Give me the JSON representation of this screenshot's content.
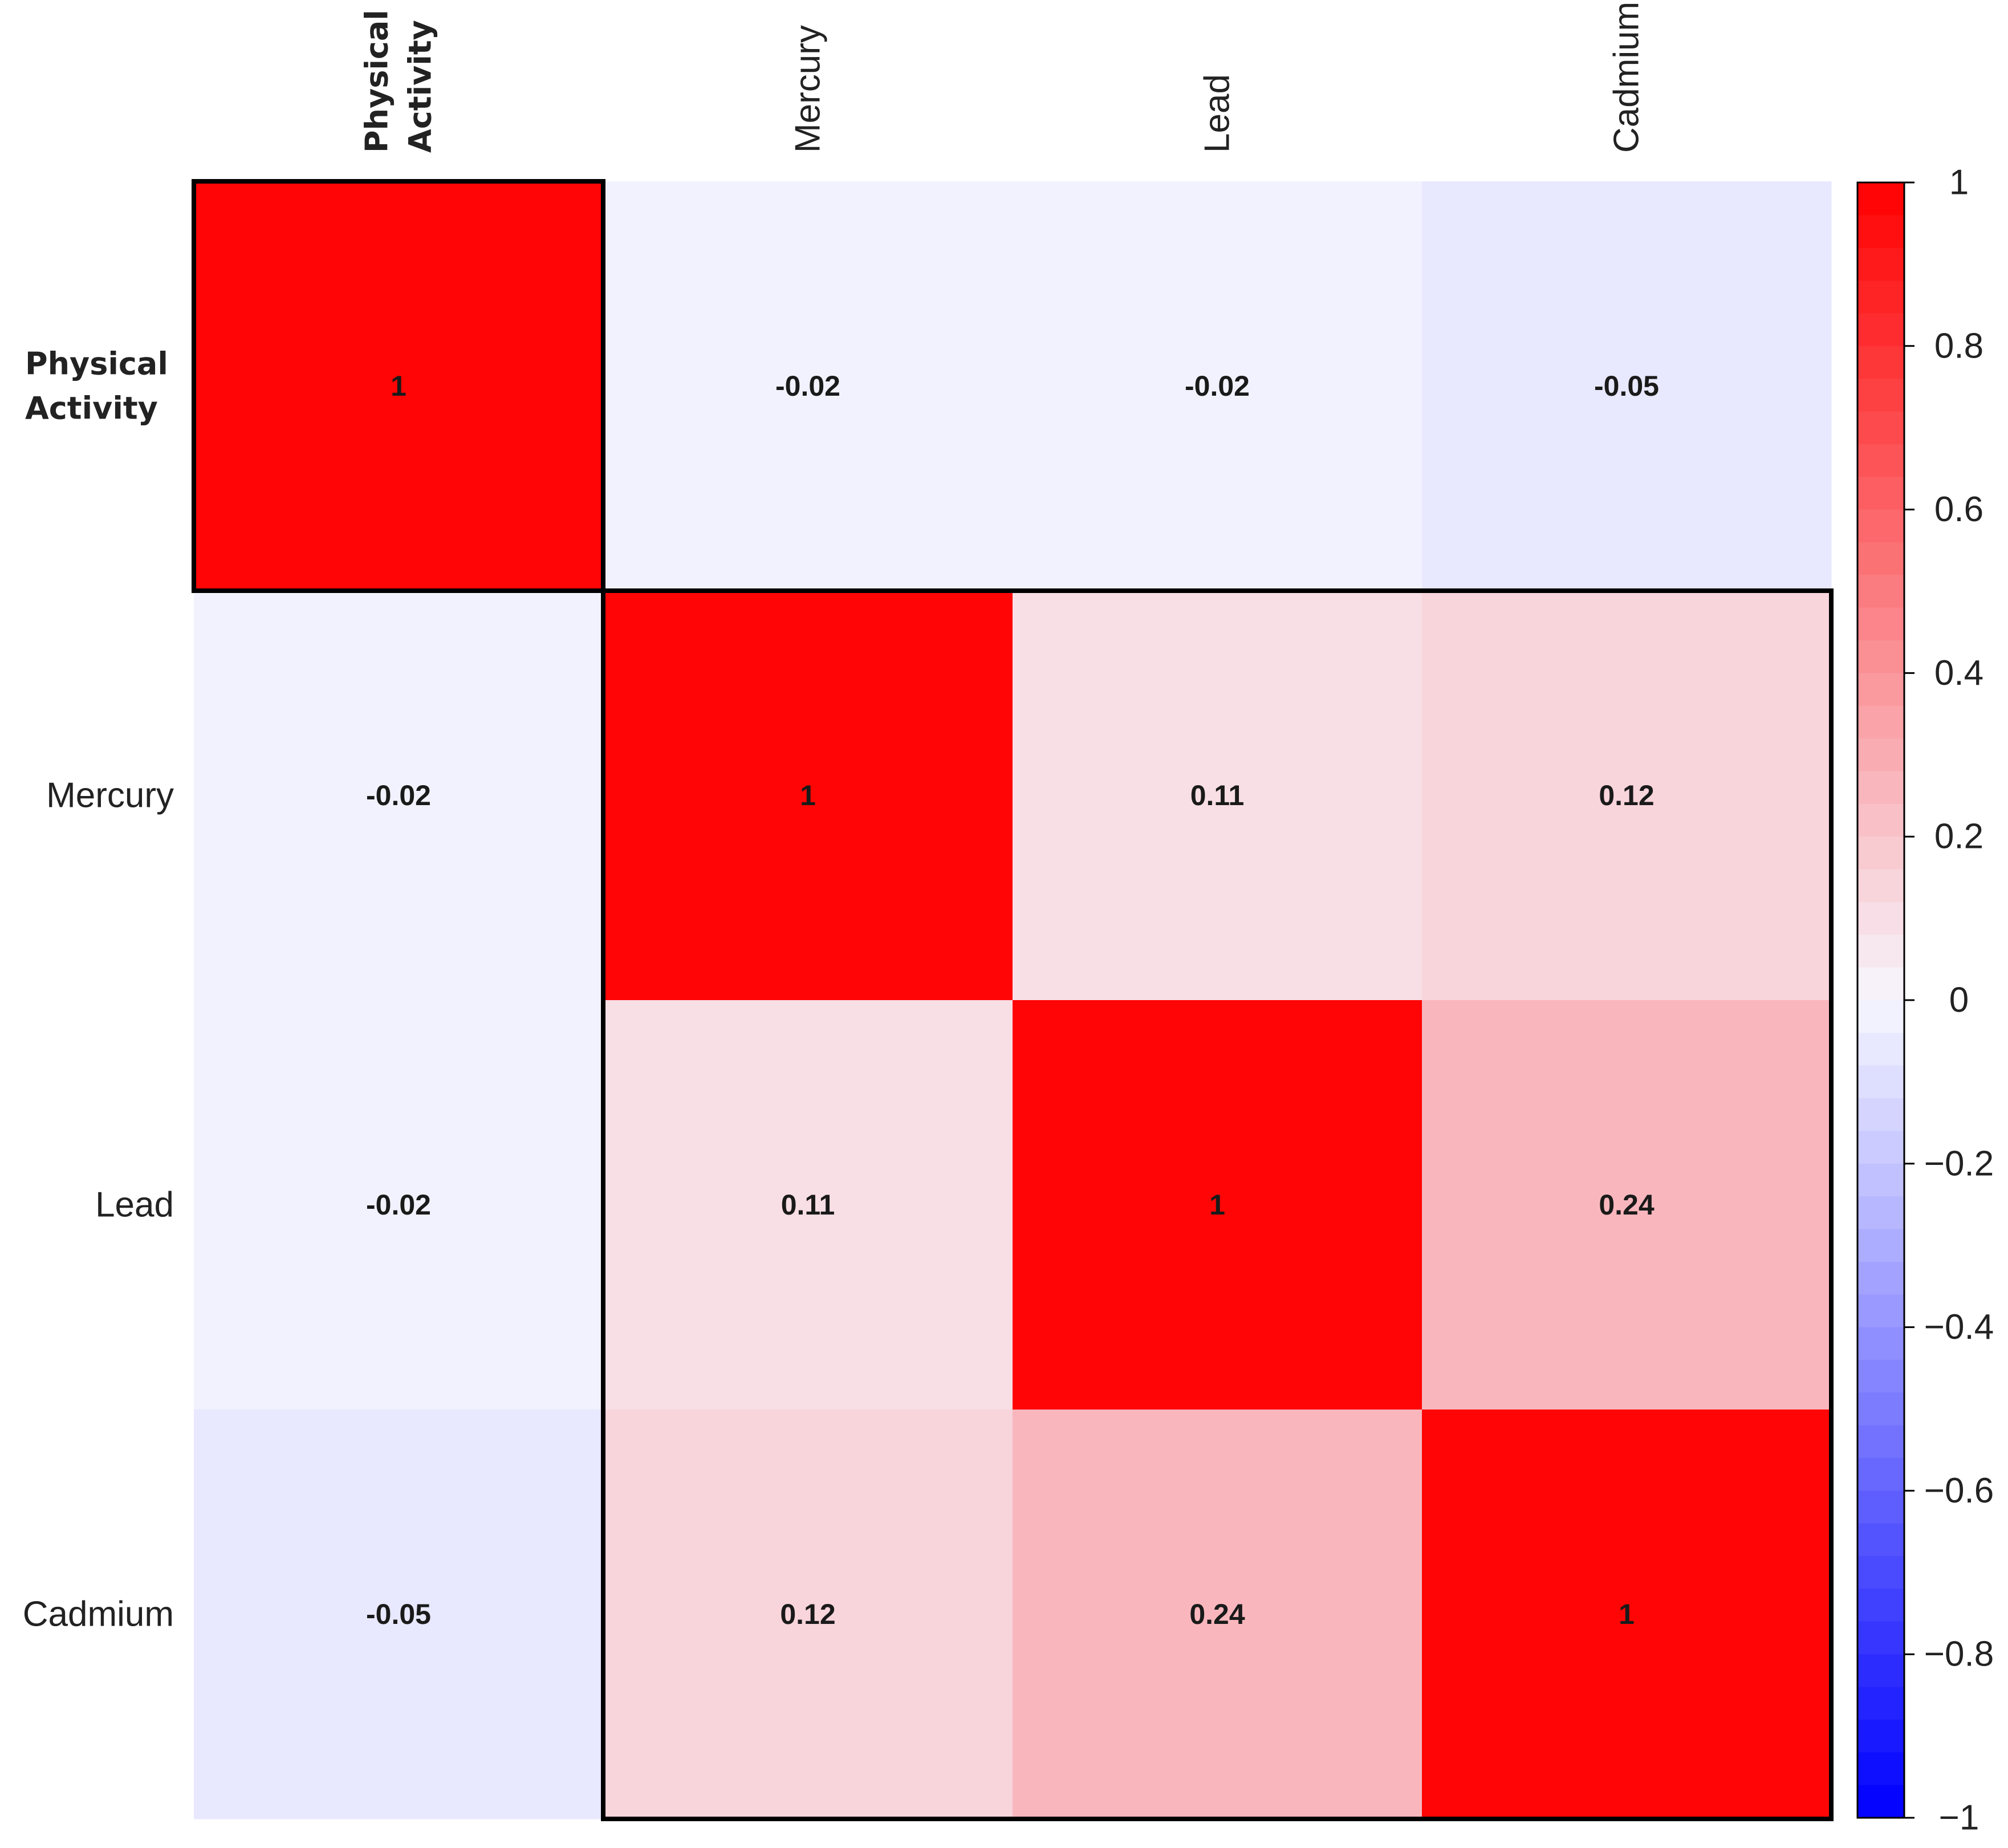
{
  "chart_data": {
    "type": "heatmap",
    "variables": [
      "Physical Activity",
      "Mercury",
      "Lead",
      "Cadmium"
    ],
    "row_labels": [
      {
        "lines": [
          "Physical",
          "Activity"
        ],
        "bold": true
      },
      {
        "lines": [
          "Mercury"
        ],
        "bold": false
      },
      {
        "lines": [
          "Lead"
        ],
        "bold": false
      },
      {
        "lines": [
          "Cadmium"
        ],
        "bold": false
      }
    ],
    "col_labels": [
      {
        "lines": [
          "Physical",
          "Activity"
        ],
        "bold": true
      },
      {
        "lines": [
          "Mercury"
        ],
        "bold": false
      },
      {
        "lines": [
          "Lead"
        ],
        "bold": false
      },
      {
        "lines": [
          "Cadmium"
        ],
        "bold": false
      }
    ],
    "matrix": [
      [
        1,
        -0.02,
        -0.02,
        -0.05
      ],
      [
        -0.02,
        1,
        0.11,
        0.12
      ],
      [
        -0.02,
        0.11,
        1,
        0.24
      ],
      [
        -0.05,
        0.12,
        0.24,
        1
      ]
    ],
    "cell_text": [
      [
        "1",
        "-0.02",
        "-0.02",
        "-0.05"
      ],
      [
        "-0.02",
        "1",
        "0.11",
        "0.12"
      ],
      [
        "-0.02",
        "0.11",
        "1",
        "0.24"
      ],
      [
        "-0.05",
        "0.12",
        "0.24",
        "1"
      ]
    ],
    "clusters": [
      {
        "from": 0,
        "to": 0
      },
      {
        "from": 1,
        "to": 3
      }
    ],
    "colorbar": {
      "range": [
        -1,
        1
      ],
      "ticks": [
        1,
        0.8,
        0.6,
        0.4,
        0.2,
        0,
        -0.2,
        -0.4,
        -0.6,
        -0.8,
        -1
      ],
      "tick_labels": [
        "1",
        "0.8",
        "0.6",
        "0.4",
        "0.2",
        "0",
        "−0.2",
        "−0.4",
        "−0.6",
        "−0.8",
        "−1"
      ],
      "high_color": "#ff0000",
      "mid_color": "#f7f7ff",
      "low_color": "#0000ff"
    }
  }
}
